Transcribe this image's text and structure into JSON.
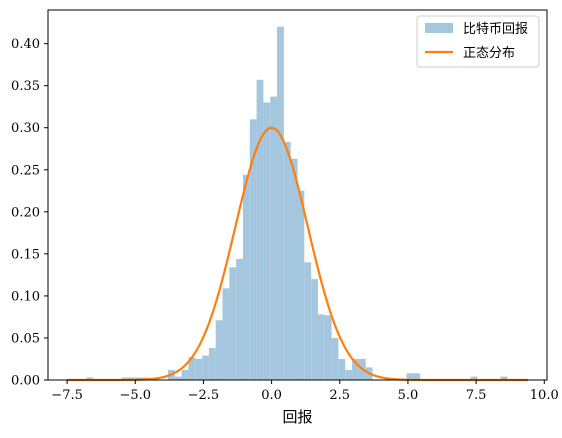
{
  "chart_data": {
    "type": "bar",
    "title": "",
    "xlabel": "回报",
    "ylabel": "",
    "xlim": [
      -8.2,
      10.1
    ],
    "ylim": [
      0,
      0.44
    ],
    "xticks": [
      -7.5,
      -5.0,
      -2.5,
      0.0,
      2.5,
      5.0,
      7.5,
      10.0
    ],
    "xtick_labels": [
      "−7.5",
      "−5.0",
      "−2.5",
      "0.0",
      "2.5",
      "5.0",
      "7.5",
      "10.0"
    ],
    "yticks": [
      0.0,
      0.05,
      0.1,
      0.15,
      0.2,
      0.25,
      0.3,
      0.35,
      0.4
    ],
    "ytick_labels": [
      "0.00",
      "0.05",
      "0.10",
      "0.15",
      "0.20",
      "0.25",
      "0.30",
      "0.35",
      "0.40"
    ],
    "grid": false,
    "legend_position": "top-right",
    "histogram": {
      "name": "比特币回报",
      "color": "#a4c6df",
      "bins": [
        {
          "x0": -6.8,
          "x1": -6.55,
          "y": 0.003
        },
        {
          "x0": -5.5,
          "x1": -5.25,
          "y": 0.003
        },
        {
          "x0": -5.25,
          "x1": -5.0,
          "y": 0.003
        },
        {
          "x0": -5.0,
          "x1": -4.75,
          "y": 0.003
        },
        {
          "x0": -4.75,
          "x1": -4.5,
          "y": 0.003
        },
        {
          "x0": -3.8,
          "x1": -3.55,
          "y": 0.012
        },
        {
          "x0": -3.55,
          "x1": -3.3,
          "y": 0.004
        },
        {
          "x0": -3.3,
          "x1": -3.05,
          "y": 0.012
        },
        {
          "x0": -3.05,
          "x1": -2.8,
          "y": 0.027
        },
        {
          "x0": -2.8,
          "x1": -2.55,
          "y": 0.025
        },
        {
          "x0": -2.55,
          "x1": -2.3,
          "y": 0.029
        },
        {
          "x0": -2.3,
          "x1": -2.05,
          "y": 0.038
        },
        {
          "x0": -2.05,
          "x1": -1.8,
          "y": 0.071
        },
        {
          "x0": -1.8,
          "x1": -1.55,
          "y": 0.109
        },
        {
          "x0": -1.55,
          "x1": -1.3,
          "y": 0.134
        },
        {
          "x0": -1.3,
          "x1": -1.05,
          "y": 0.144
        },
        {
          "x0": -1.05,
          "x1": -0.8,
          "y": 0.244
        },
        {
          "x0": -0.8,
          "x1": -0.55,
          "y": 0.31
        },
        {
          "x0": -0.55,
          "x1": -0.3,
          "y": 0.357
        },
        {
          "x0": -0.3,
          "x1": -0.05,
          "y": 0.33
        },
        {
          "x0": -0.05,
          "x1": 0.2,
          "y": 0.337
        },
        {
          "x0": 0.2,
          "x1": 0.45,
          "y": 0.42
        },
        {
          "x0": 0.45,
          "x1": 0.7,
          "y": 0.283
        },
        {
          "x0": 0.7,
          "x1": 0.95,
          "y": 0.263
        },
        {
          "x0": 0.95,
          "x1": 1.2,
          "y": 0.225
        },
        {
          "x0": 1.2,
          "x1": 1.45,
          "y": 0.14
        },
        {
          "x0": 1.45,
          "x1": 1.7,
          "y": 0.12
        },
        {
          "x0": 1.7,
          "x1": 1.95,
          "y": 0.078
        },
        {
          "x0": 1.95,
          "x1": 2.2,
          "y": 0.077
        },
        {
          "x0": 2.2,
          "x1": 2.45,
          "y": 0.05
        },
        {
          "x0": 2.45,
          "x1": 2.7,
          "y": 0.025
        },
        {
          "x0": 2.7,
          "x1": 2.95,
          "y": 0.012
        },
        {
          "x0": 2.95,
          "x1": 3.2,
          "y": 0.025
        },
        {
          "x0": 3.2,
          "x1": 3.45,
          "y": 0.025
        },
        {
          "x0": 3.45,
          "x1": 3.7,
          "y": 0.015
        },
        {
          "x0": 4.95,
          "x1": 5.2,
          "y": 0.008
        },
        {
          "x0": 5.2,
          "x1": 5.45,
          "y": 0.008
        },
        {
          "x0": 7.3,
          "x1": 7.55,
          "y": 0.004
        },
        {
          "x0": 8.4,
          "x1": 8.65,
          "y": 0.004
        }
      ]
    },
    "series": [
      {
        "name": "正态分布",
        "color": "#ff7f0e",
        "type": "line",
        "distribution": "normal",
        "mean": 0.0,
        "std": 1.33,
        "x_range": [
          -7.5,
          9.4
        ]
      }
    ],
    "legend": [
      {
        "label": "比特币回报",
        "kind": "patch",
        "color": "#a4c6df"
      },
      {
        "label": "正态分布",
        "kind": "line",
        "color": "#ff7f0e"
      }
    ]
  }
}
